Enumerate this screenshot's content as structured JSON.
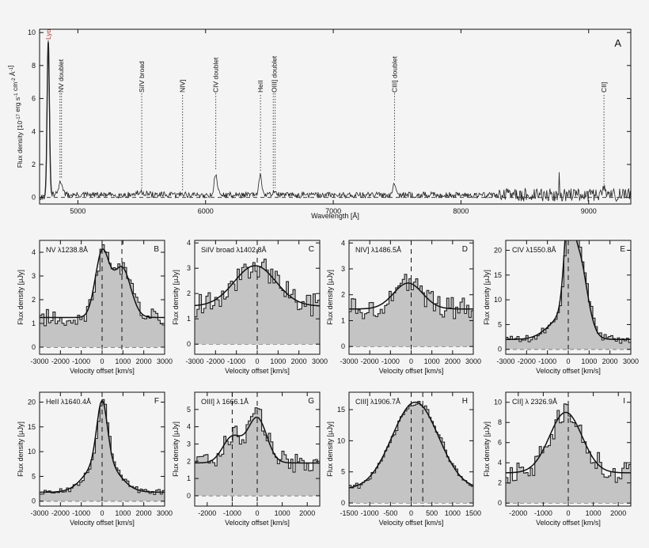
{
  "chart_data": [
    {
      "id": "A",
      "type": "line",
      "panel_label": "A",
      "xlabel": "Wavelength [Å]",
      "ylabel": "Flux density [10^-17 erg s^-1 cm^-2 Å^-1]",
      "ylabel_parts": {
        "pre": "Flux density [10",
        "exp1": "-17",
        "mid1": " erg s",
        "exp2": "-1",
        "mid2": " cm",
        "exp3": "-2",
        "mid3": " Å",
        "exp4": "-1",
        "post": "]"
      },
      "xlim": [
        4700,
        9330
      ],
      "ylim": [
        -0.4,
        10.2
      ],
      "xticks": [
        5000,
        6000,
        7000,
        8000,
        9000
      ],
      "yticks": [
        0,
        2,
        4,
        6,
        8,
        10
      ],
      "continuum": 0.15,
      "noise_amp": 0.18,
      "lines": [
        {
          "label": "Lyα",
          "x": 4768,
          "color": "#b03030",
          "peak": 9.3,
          "width": 9
        },
        {
          "label": "NV doublet",
          "x": 4860,
          "x2": 4872,
          "peak": 0.45,
          "width": 14
        },
        {
          "label": "SiIV broad",
          "x": 5500,
          "peak": 0.15,
          "width": 40
        },
        {
          "label": "NIV]",
          "x": 5820,
          "peak": 0.1,
          "width": 15
        },
        {
          "label": "CIV doublet",
          "x": 6080,
          "peak": 1.3,
          "width": 12
        },
        {
          "label": "HeII",
          "x": 6430,
          "peak": 1.2,
          "width": 11
        },
        {
          "label": "OIII] doublet",
          "x": 6530,
          "x2": 6545,
          "peak": 0.15,
          "width": 12
        },
        {
          "label": "CIII] doublet",
          "x": 7480,
          "peak": 0.7,
          "width": 14
        },
        {
          "label": "CII]",
          "x": 9120,
          "peak": 0.3,
          "width": 20
        }
      ]
    },
    {
      "id": "B",
      "type": "line",
      "panel_label": "B",
      "title": "NV λ1238.8Å",
      "xlabel": "Velocity offset [km/s]",
      "ylabel": "Flux density [μJy]",
      "xlim": [
        -3000,
        3000
      ],
      "ylim": [
        -0.3,
        4.5
      ],
      "xticks": [
        -3000,
        -2000,
        -1000,
        0,
        1000,
        2000,
        3000
      ],
      "yticks": [
        0,
        1,
        2,
        3,
        4
      ],
      "dashed_x": [
        0,
        950
      ],
      "model": {
        "cont": 1.25,
        "comps": [
          {
            "a": 2.7,
            "mu": 0,
            "sig": 330
          },
          {
            "a": 2.1,
            "mu": 950,
            "sig": 420
          }
        ]
      },
      "noise": 0.35
    },
    {
      "id": "C",
      "type": "line",
      "panel_label": "C",
      "title": "SiIV broad λ1402.8Å",
      "xlabel": "Velocity offset [km/s]",
      "ylabel": "Flux density [μJy]",
      "xlim": [
        -3000,
        3000
      ],
      "ylim": [
        -0.4,
        4.1
      ],
      "xticks": [
        -3000,
        -2000,
        -1000,
        0,
        1000,
        2000,
        3000
      ],
      "yticks": [
        0,
        1,
        2,
        3,
        4
      ],
      "dashed_x": [
        0
      ],
      "model": {
        "cont": 1.5,
        "comps": [
          {
            "a": 1.6,
            "mu": -100,
            "sig": 1000
          }
        ]
      },
      "noise": 0.45
    },
    {
      "id": "D",
      "type": "line",
      "panel_label": "D",
      "title": "NIV] λ1486.5Å",
      "xlabel": "Velocity offset [km/s]",
      "ylabel": "Flux density [μJy]",
      "xlim": [
        -3000,
        3000
      ],
      "ylim": [
        -0.3,
        4.1
      ],
      "xticks": [
        -3000,
        -2000,
        -1000,
        0,
        1000,
        2000,
        3000
      ],
      "yticks": [
        0,
        1,
        2,
        3,
        4
      ],
      "dashed_x": [
        0
      ],
      "model": {
        "cont": 1.45,
        "comps": [
          {
            "a": 1.0,
            "mu": -150,
            "sig": 700
          }
        ]
      },
      "noise": 0.45
    },
    {
      "id": "E",
      "type": "line",
      "panel_label": "E",
      "title": "CIV λ1550.8Å",
      "xlabel": "Velocity offset [km/s]",
      "ylabel": "Flux density [μJy]",
      "xlim": [
        -3000,
        3000
      ],
      "ylim": [
        -1,
        22
      ],
      "xticks": [
        -3000,
        -2000,
        -1000,
        0,
        1000,
        2000,
        3000
      ],
      "yticks": [
        0,
        5,
        10,
        15,
        20
      ],
      "dashed_x": [
        0
      ],
      "model": {
        "cont": 2.0,
        "comps": [
          {
            "a": 15,
            "mu": 0,
            "sig": 190
          },
          {
            "a": 16,
            "mu": 450,
            "sig": 420
          },
          {
            "a": 4,
            "mu": -300,
            "sig": 700
          }
        ]
      },
      "noise": 0.8
    },
    {
      "id": "F",
      "type": "line",
      "panel_label": "F",
      "title": "HeII λ1640.4Å",
      "xlabel": "Velocity offset [km/s]",
      "ylabel": "Flux density [μJy]",
      "xlim": [
        -3000,
        3000
      ],
      "ylim": [
        -1,
        22
      ],
      "xticks": [
        -3000,
        -2000,
        -1000,
        0,
        1000,
        2000,
        3000
      ],
      "yticks": [
        0,
        5,
        10,
        15,
        20
      ],
      "dashed_x": [
        0
      ],
      "model": {
        "cont": 1.8,
        "comps": [
          {
            "a": 12,
            "mu": 0,
            "sig": 250
          },
          {
            "a": 6.5,
            "mu": 0,
            "sig": 750
          }
        ]
      },
      "noise": 0.55
    },
    {
      "id": "G",
      "type": "line",
      "panel_label": "G",
      "title": "OIII] λ 1666.1Å",
      "xlabel": "Velocity offset [km/s]",
      "ylabel": "Flux density [μJy]",
      "xlim": [
        -2500,
        2500
      ],
      "ylim": [
        -0.6,
        6
      ],
      "xticks": [
        -2000,
        -1000,
        0,
        1000,
        2000
      ],
      "yticks": [
        0,
        1,
        2,
        3,
        4,
        5
      ],
      "dashed_x": [
        -1000,
        0
      ],
      "model": {
        "cont": 1.9,
        "comps": [
          {
            "a": 1.5,
            "mu": -1000,
            "sig": 380
          },
          {
            "a": 2.6,
            "mu": 0,
            "sig": 380
          }
        ]
      },
      "noise": 0.6
    },
    {
      "id": "H",
      "type": "line",
      "panel_label": "H",
      "title": "CIII] λ1906.7Å",
      "xlabel": "Velocity offset [km/s]",
      "ylabel": "Flux density [μJy]",
      "xlim": [
        -1500,
        1500
      ],
      "ylim": [
        -0.5,
        17.8
      ],
      "xticks": [
        -1500,
        -1000,
        -500,
        0,
        500,
        1000,
        1500
      ],
      "yticks": [
        0,
        5,
        10,
        15
      ],
      "dashed_x": [
        0,
        280
      ],
      "model": {
        "cont": 2.2,
        "comps": [
          {
            "a": 14,
            "mu": 100,
            "sig": 560
          }
        ]
      },
      "noise": 0.5
    },
    {
      "id": "I",
      "type": "line",
      "panel_label": "I",
      "title": "CII] λ 2326.9Å",
      "xlabel": "Velocity offset [km/s]",
      "ylabel": "Flux density [μJy]",
      "xlim": [
        -2500,
        2500
      ],
      "ylim": [
        -0.3,
        11
      ],
      "xticks": [
        -2000,
        -1000,
        0,
        1000,
        2000
      ],
      "yticks": [
        0,
        2,
        4,
        6,
        8,
        10
      ],
      "dashed_x": [
        0
      ],
      "model": {
        "cont": 3.0,
        "comps": [
          {
            "a": 6.0,
            "mu": -100,
            "sig": 650
          }
        ]
      },
      "noise": 1.1
    }
  ]
}
